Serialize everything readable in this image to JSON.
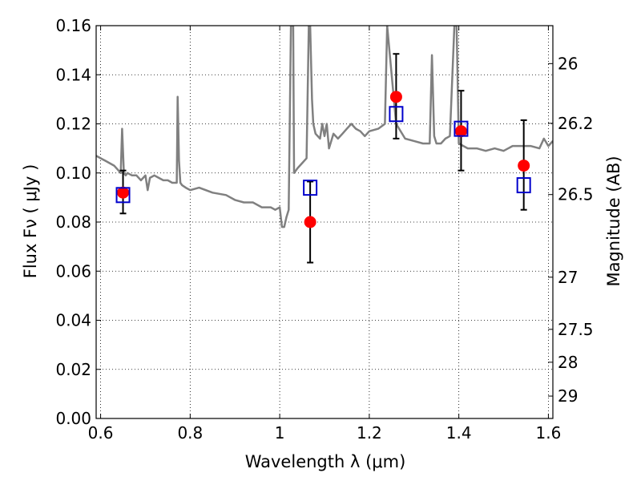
{
  "chart_data": {
    "type": "scatter",
    "xlabel": "Wavelength  λ (μm)",
    "ylabel": "Flux  Fν  ( μJy )",
    "ylabel_right": "Magnitude (AB)",
    "xlim": [
      0.59,
      1.61
    ],
    "ylim": [
      0.0,
      0.16
    ],
    "grid": true,
    "x_ticks": [
      0.6,
      0.8,
      1.0,
      1.2,
      1.4,
      1.6
    ],
    "x_tick_labels": [
      "0.6",
      "0.8",
      "1",
      "1.2",
      "1.4",
      "1.6"
    ],
    "y_ticks": [
      0.0,
      0.02,
      0.04,
      0.06,
      0.08,
      0.1,
      0.12,
      0.14,
      0.16
    ],
    "y_tick_labels": [
      "0.00",
      "0.02",
      "0.04",
      "0.06",
      "0.08",
      "0.10",
      "0.12",
      "0.14",
      "0.16"
    ],
    "right_axis": {
      "magnitudes": [
        26,
        26.2,
        26.5,
        27,
        27.5,
        28,
        29
      ],
      "labels": [
        "26",
        "26.2",
        "26.5",
        "27",
        "27.5",
        "28",
        "29"
      ]
    },
    "series": [
      {
        "kind": "line",
        "color": "#808080",
        "x": [
          0.59,
          0.6,
          0.61,
          0.62,
          0.63,
          0.64,
          0.645,
          0.648,
          0.652,
          0.656,
          0.66,
          0.67,
          0.68,
          0.69,
          0.7,
          0.705,
          0.71,
          0.72,
          0.73,
          0.74,
          0.75,
          0.76,
          0.77,
          0.772,
          0.775,
          0.778,
          0.782,
          0.79,
          0.8,
          0.82,
          0.85,
          0.88,
          0.9,
          0.92,
          0.94,
          0.96,
          0.98,
          0.99,
          1.0,
          1.005,
          1.01,
          1.015,
          1.02,
          1.025,
          1.03,
          1.032,
          1.04,
          1.05,
          1.06,
          1.065,
          1.068,
          1.072,
          1.075,
          1.08,
          1.09,
          1.095,
          1.1,
          1.105,
          1.11,
          1.12,
          1.13,
          1.14,
          1.15,
          1.16,
          1.17,
          1.18,
          1.19,
          1.2,
          1.22,
          1.235,
          1.24,
          1.26,
          1.28,
          1.3,
          1.32,
          1.335,
          1.34,
          1.345,
          1.35,
          1.36,
          1.37,
          1.38,
          1.39,
          1.395,
          1.4,
          1.42,
          1.44,
          1.46,
          1.48,
          1.5,
          1.52,
          1.54,
          1.56,
          1.58,
          1.59,
          1.6,
          1.61
        ],
        "y": [
          0.107,
          0.106,
          0.105,
          0.104,
          0.103,
          0.101,
          0.1,
          0.118,
          0.1,
          0.099,
          0.1,
          0.099,
          0.099,
          0.097,
          0.099,
          0.093,
          0.098,
          0.099,
          0.098,
          0.097,
          0.097,
          0.096,
          0.096,
          0.131,
          0.105,
          0.096,
          0.095,
          0.094,
          0.093,
          0.094,
          0.092,
          0.091,
          0.089,
          0.088,
          0.088,
          0.086,
          0.086,
          0.085,
          0.086,
          0.078,
          0.078,
          0.082,
          0.085,
          0.16,
          0.16,
          0.1,
          0.102,
          0.104,
          0.106,
          0.16,
          0.16,
          0.13,
          0.12,
          0.116,
          0.114,
          0.12,
          0.115,
          0.12,
          0.11,
          0.116,
          0.114,
          0.116,
          0.118,
          0.12,
          0.118,
          0.117,
          0.115,
          0.117,
          0.118,
          0.12,
          0.16,
          0.12,
          0.114,
          0.113,
          0.112,
          0.112,
          0.148,
          0.115,
          0.112,
          0.112,
          0.114,
          0.115,
          0.16,
          0.16,
          0.112,
          0.11,
          0.11,
          0.109,
          0.11,
          0.109,
          0.111,
          0.111,
          0.111,
          0.11,
          0.114,
          0.111,
          0.113
        ]
      },
      {
        "kind": "observed",
        "marker": "circle",
        "color": "#ff0000",
        "x": [
          0.65,
          1.068,
          1.26,
          1.405,
          1.545
        ],
        "y": [
          0.092,
          0.08,
          0.131,
          0.117,
          0.103
        ],
        "err_low": [
          0.0085,
          0.0165,
          0.017,
          0.016,
          0.018
        ],
        "err_high": [
          0.009,
          0.0165,
          0.0175,
          0.0165,
          0.0185
        ]
      },
      {
        "kind": "model",
        "marker": "square",
        "color": "#0000cc",
        "x": [
          0.65,
          1.068,
          1.26,
          1.405,
          1.545
        ],
        "y": [
          0.091,
          0.094,
          0.124,
          0.118,
          0.095
        ]
      }
    ]
  }
}
